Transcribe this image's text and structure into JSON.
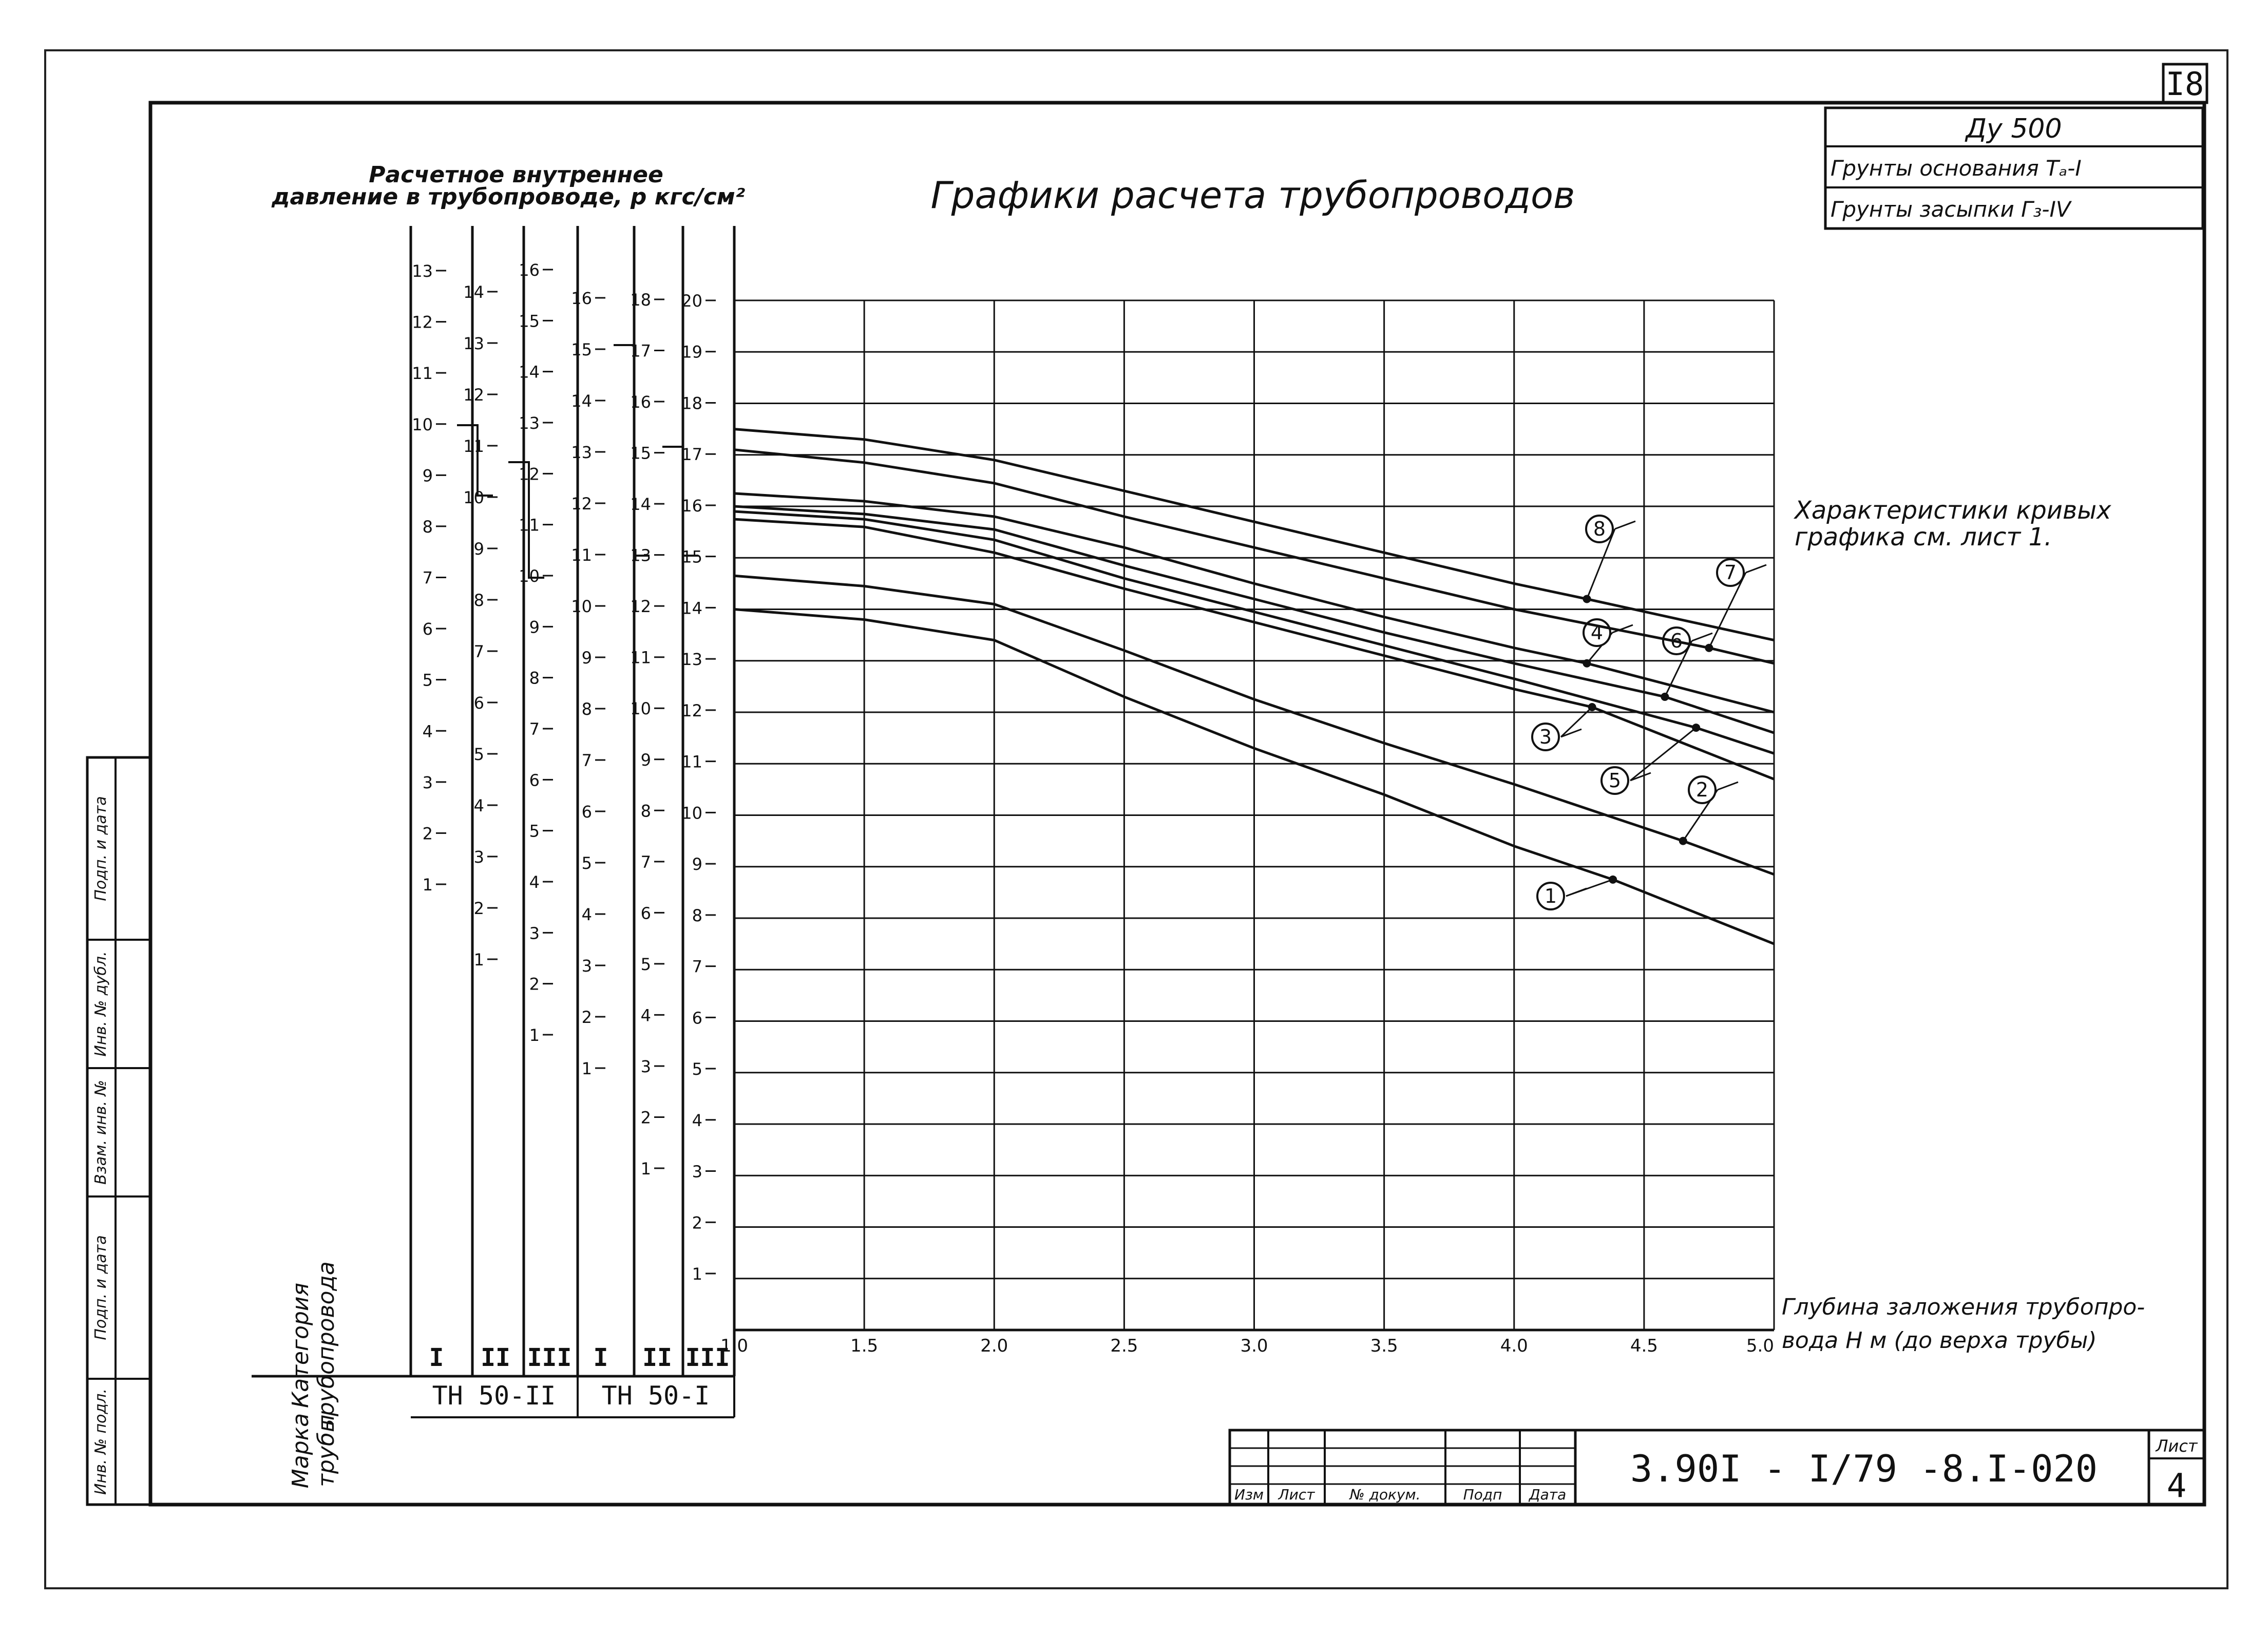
{
  "sheet_corner_number": "I8",
  "title_block_top": {
    "diameter": "Ду 500",
    "base_soil": "Грунты основания Тₐ-I",
    "backfill_soil": "Грунты засыпки Г₃-IV"
  },
  "chart_title": "Графики расчета трубопроводов",
  "pressure_label_line1": "Расчетное внутреннее",
  "pressure_label_line2": "давление в трубопроводе, р кгс/см²",
  "category_label_line1": "Категория",
  "category_label_line2": "трубопровода",
  "pipe_mark_label_line1": "Марка",
  "pipe_mark_label_line2": "трубы",
  "category_numerals": [
    "I",
    "II",
    "III",
    "I",
    "II",
    "III"
  ],
  "pipe_marks": [
    "ТН 50-II",
    "ТН 50-I"
  ],
  "scale_ticks": [
    [
      "1",
      "2",
      "3",
      "4",
      "5",
      "6",
      "7",
      "8",
      "9",
      "10",
      "11",
      "12",
      "13"
    ],
    [
      "1",
      "2",
      "3",
      "4",
      "5",
      "6",
      "7",
      "8",
      "9",
      "10",
      "11",
      "12",
      "13",
      "14"
    ],
    [
      "1",
      "2",
      "3",
      "4",
      "5",
      "6",
      "7",
      "8",
      "9",
      "10",
      "11",
      "12",
      "13",
      "14",
      "15",
      "16"
    ],
    [
      "1",
      "2",
      "3",
      "4",
      "5",
      "6",
      "7",
      "8",
      "9",
      "10",
      "11",
      "12",
      "13",
      "14",
      "15",
      "16"
    ],
    [
      "1",
      "2",
      "3",
      "4",
      "5",
      "6",
      "7",
      "8",
      "9",
      "10",
      "11",
      "12",
      "13",
      "14",
      "15",
      "16",
      "17",
      "18"
    ],
    [
      "1",
      "2",
      "3",
      "4",
      "5",
      "6",
      "7",
      "8",
      "9",
      "10",
      "11",
      "12",
      "13",
      "14",
      "15",
      "16",
      "17",
      "18",
      "19",
      "20"
    ]
  ],
  "characteristics_note_line1": "Характеристики кривых",
  "characteristics_note_line2": "графика см. лист 1.",
  "x_axis_note_line1": "Глубина заложения трубопро-",
  "x_axis_note_line2": "вода Н м (до верха трубы)",
  "side_stamp_labels": [
    "Подп. и дата",
    "Инв. № дубл.",
    "Взам. инв. №",
    "Подп. и дата",
    "Инв. № подл."
  ],
  "bottom_block": {
    "columns": [
      "Изм",
      "Лист",
      "№ докум.",
      "Подп",
      "Дата"
    ],
    "document_code": "3.90I - I/79 -8.I-020",
    "sheet_label": "Лист",
    "sheet_number": "4"
  },
  "chart_data": {
    "type": "line",
    "title": "Графики расчета трубопроводов",
    "xlabel": "Глубина заложения трубопровода Н м (до верха трубы)",
    "ylabel": "Расчетное внутреннее давление в трубопроводе, р кгс/см²",
    "x_tick_labels": [
      "1.0",
      "1.5",
      "2.0",
      "2.5",
      "3.0",
      "3.5",
      "4.0",
      "4.5",
      "5.0"
    ],
    "xlim": [
      1.0,
      5.0
    ],
    "ylim": [
      0,
      20
    ],
    "grid": true,
    "series": [
      {
        "name": "1",
        "x": [
          1.0,
          1.5,
          2.0,
          2.5,
          3.0,
          3.5,
          4.0,
          4.38,
          5.0
        ],
        "y": [
          14.0,
          13.8,
          13.4,
          12.3,
          11.3,
          10.4,
          9.4,
          8.75,
          7.5
        ]
      },
      {
        "name": "2",
        "x": [
          1.0,
          1.5,
          2.0,
          2.5,
          3.0,
          3.5,
          4.0,
          4.65,
          5.0
        ],
        "y": [
          14.65,
          14.45,
          14.1,
          13.2,
          12.25,
          11.4,
          10.6,
          9.5,
          8.85
        ]
      },
      {
        "name": "3",
        "x": [
          1.0,
          1.5,
          2.0,
          2.5,
          3.0,
          3.5,
          4.0,
          4.3,
          5.0
        ],
        "y": [
          15.75,
          15.6,
          15.1,
          14.4,
          13.75,
          13.1,
          12.45,
          12.1,
          10.7
        ]
      },
      {
        "name": "4",
        "x": [
          1.0,
          1.5,
          2.0,
          2.5,
          3.0,
          3.5,
          4.0,
          4.28,
          5.0
        ],
        "y": [
          16.25,
          16.1,
          15.8,
          15.2,
          14.5,
          13.85,
          13.25,
          12.95,
          12.0
        ]
      },
      {
        "name": "5",
        "x": [
          1.0,
          1.5,
          2.0,
          2.5,
          3.0,
          3.5,
          4.0,
          4.7,
          5.0
        ],
        "y": [
          15.9,
          15.75,
          15.35,
          14.6,
          13.95,
          13.3,
          12.65,
          11.7,
          11.2
        ]
      },
      {
        "name": "6",
        "x": [
          1.0,
          1.5,
          2.0,
          2.5,
          3.0,
          3.5,
          4.0,
          4.58,
          5.0
        ],
        "y": [
          16.0,
          15.85,
          15.55,
          14.85,
          14.2,
          13.55,
          12.95,
          12.3,
          11.6
        ]
      },
      {
        "name": "7",
        "x": [
          1.0,
          1.5,
          2.0,
          2.5,
          3.0,
          3.5,
          4.0,
          4.75,
          5.0
        ],
        "y": [
          17.1,
          16.85,
          16.45,
          15.8,
          15.2,
          14.6,
          14.0,
          13.25,
          12.95
        ]
      },
      {
        "name": "8",
        "x": [
          1.0,
          1.5,
          2.0,
          2.5,
          3.0,
          3.5,
          4.0,
          4.28,
          5.0
        ],
        "y": [
          17.5,
          17.3,
          16.9,
          16.3,
          15.7,
          15.1,
          14.5,
          14.2,
          13.4
        ]
      }
    ]
  }
}
